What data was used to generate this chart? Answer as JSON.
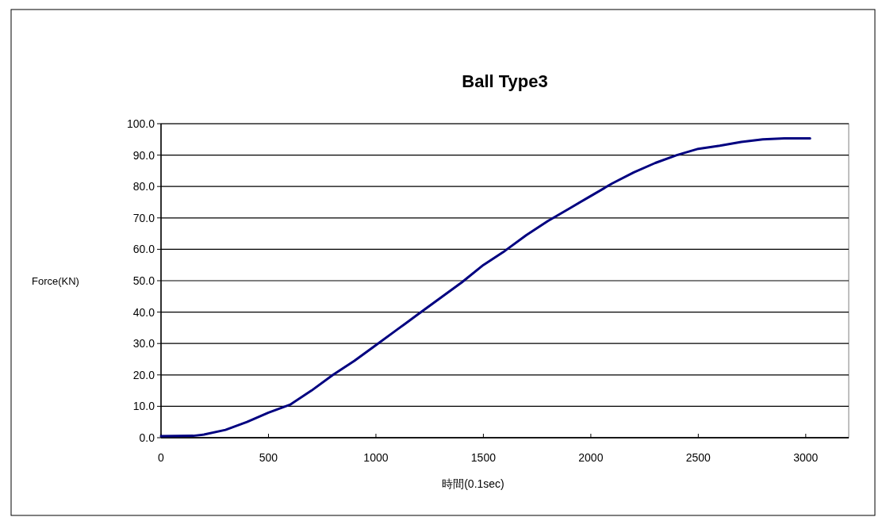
{
  "chart_data": {
    "type": "line",
    "title": "Ball Type3",
    "xlabel": "時間(0.1sec)",
    "ylabel": "Force(KN)",
    "xlim": [
      0,
      3200
    ],
    "xticks": [
      0,
      500,
      1000,
      1500,
      2000,
      2500,
      3000
    ],
    "ylim": [
      0,
      100
    ],
    "yticks": [
      {
        "value": 0,
        "label": "0.0"
      },
      {
        "value": 10,
        "label": "10.0"
      },
      {
        "value": 20,
        "label": "20.0"
      },
      {
        "value": 30,
        "label": "30.0"
      },
      {
        "value": 40,
        "label": "40.0"
      },
      {
        "value": 50,
        "label": "50.0"
      },
      {
        "value": 60,
        "label": "60.0"
      },
      {
        "value": 70,
        "label": "70.0"
      },
      {
        "value": 80,
        "label": "80.0"
      },
      {
        "value": 90,
        "label": "90.0"
      },
      {
        "value": 100,
        "label": "100.0"
      }
    ],
    "grid": "y",
    "marker": "none",
    "line_style": "solid",
    "series": [
      {
        "color": "#000080",
        "x": [
          0,
          150,
          200,
          300,
          400,
          500,
          600,
          700,
          800,
          900,
          1000,
          1100,
          1200,
          1300,
          1400,
          1500,
          1600,
          1700,
          1800,
          1900,
          2000,
          2100,
          2200,
          2300,
          2400,
          2500,
          2600,
          2700,
          2800,
          2900,
          3020
        ],
        "values": [
          0.5,
          0.6,
          1,
          2.5,
          5,
          8,
          10.5,
          15,
          20,
          24.5,
          29.5,
          34.5,
          39.5,
          44.5,
          49.5,
          55,
          59.5,
          64.5,
          69,
          73,
          77,
          81,
          84.5,
          87.5,
          90,
          92,
          93,
          94.2,
          95,
          95.3,
          95.3
        ]
      }
    ]
  }
}
